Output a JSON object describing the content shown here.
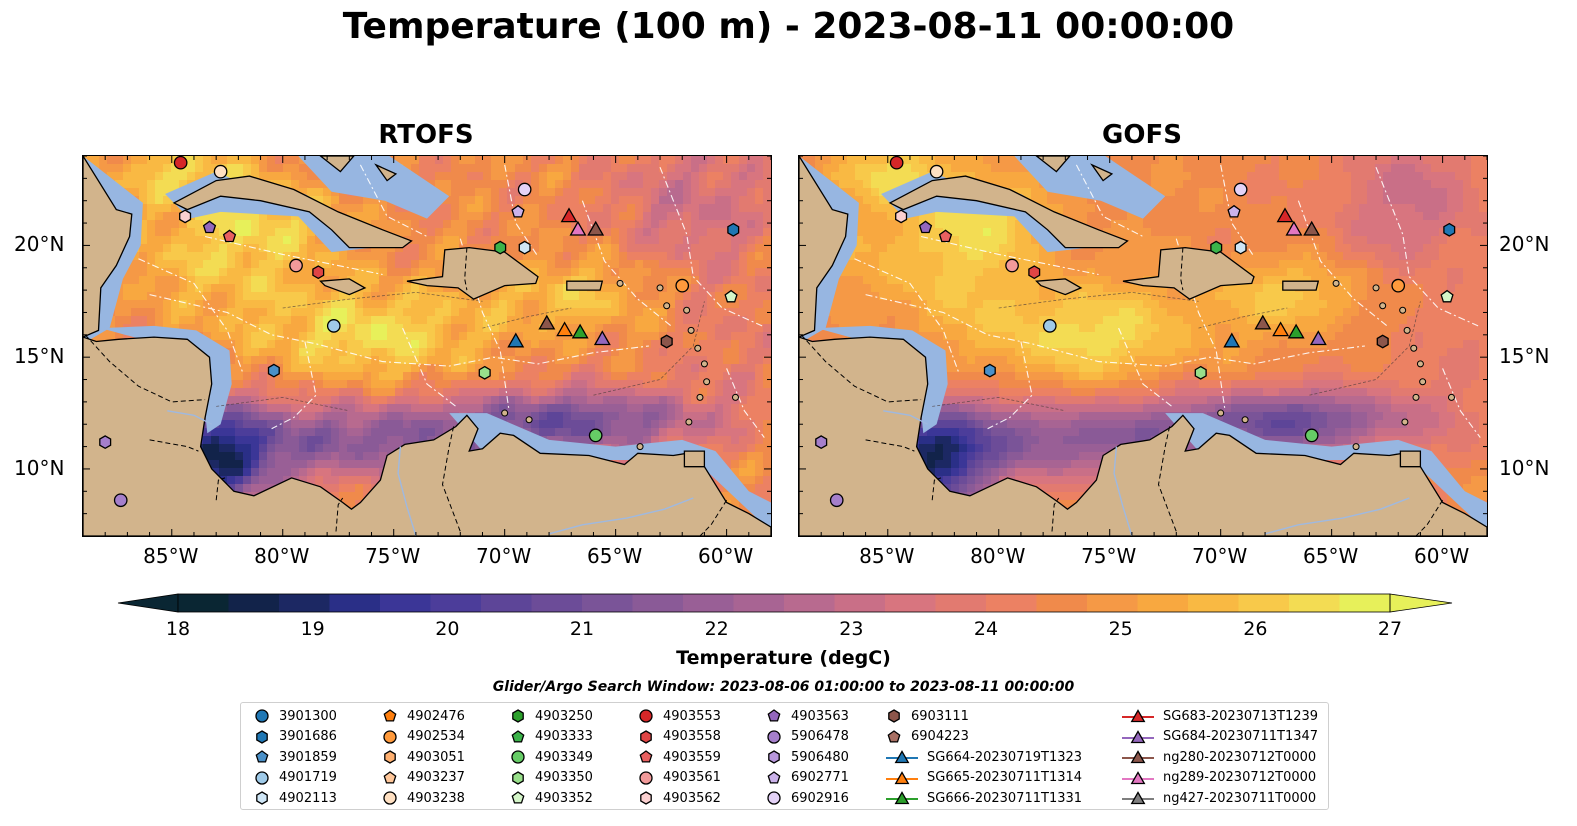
{
  "title": "Temperature (100 m) - 2023-08-11 00:00:00",
  "panels": [
    {
      "title": "RTOFS",
      "model": "rtofs"
    },
    {
      "title": "GOFS",
      "model": "gofs"
    }
  ],
  "axes": {
    "x_ticks": [
      "85°W",
      "80°W",
      "75°W",
      "70°W",
      "65°W",
      "60°W"
    ],
    "x_values": [
      -85,
      -80,
      -75,
      -70,
      -65,
      -60
    ],
    "y_ticks": [
      "20°N",
      "15°N",
      "10°N"
    ],
    "y_values": [
      20,
      15,
      10
    ],
    "lon_range": [
      -89,
      -58
    ],
    "lat_range": [
      7,
      24
    ]
  },
  "colorbar": {
    "label": "Temperature (degC)",
    "ticks": [
      "18",
      "19",
      "20",
      "21",
      "22",
      "23",
      "24",
      "25",
      "26",
      "27"
    ],
    "range": [
      18,
      27
    ],
    "extend": "both",
    "colormap": "thermal",
    "colors": [
      "#0a2633",
      "#12234a",
      "#1c2863",
      "#2a2f87",
      "#3b3697",
      "#4c3d9a",
      "#5d4598",
      "#6c4c98",
      "#7a5498",
      "#8a5a97",
      "#995f96",
      "#a86493",
      "#b86a8f",
      "#c96f87",
      "#d8757f",
      "#e27a70",
      "#ec8163",
      "#f08a4b",
      "#f59946",
      "#f8a840",
      "#f9b943",
      "#f8c94a",
      "#f3dc53",
      "#e7f05a"
    ]
  },
  "search_window": "Glider/Argo Search Window: 2023-08-06 01:00:00 to 2023-08-11 00:00:00",
  "legend": [
    {
      "label": "3901300",
      "marker": "circle",
      "color": "#1f77b4"
    },
    {
      "label": "3901686",
      "marker": "hexagon",
      "color": "#1f77b4"
    },
    {
      "label": "3901859",
      "marker": "pentagon",
      "color": "#4a90c8"
    },
    {
      "label": "4901719",
      "marker": "circle",
      "color": "#9fcae8"
    },
    {
      "label": "4902113",
      "marker": "hexagon",
      "color": "#cfe6f6"
    },
    {
      "label": "4902476",
      "marker": "pentagon",
      "color": "#ff7f0e"
    },
    {
      "label": "4902534",
      "marker": "circle",
      "color": "#ff9a3c"
    },
    {
      "label": "4903051",
      "marker": "hexagon",
      "color": "#ffb070"
    },
    {
      "label": "4903237",
      "marker": "pentagon",
      "color": "#ffc79a"
    },
    {
      "label": "4903238",
      "marker": "circle",
      "color": "#ffe0c2"
    },
    {
      "label": "4903250",
      "marker": "hexagon",
      "color": "#2ca02c"
    },
    {
      "label": "4903333",
      "marker": "pentagon",
      "color": "#3cb34a"
    },
    {
      "label": "4903349",
      "marker": "circle",
      "color": "#66cc66"
    },
    {
      "label": "4903350",
      "marker": "hexagon",
      "color": "#98df8a"
    },
    {
      "label": "4903352",
      "marker": "pentagon",
      "color": "#d4f5c8"
    },
    {
      "label": "4903553",
      "marker": "circle",
      "color": "#d62728"
    },
    {
      "label": "4903558",
      "marker": "hexagon",
      "color": "#e04545"
    },
    {
      "label": "4903559",
      "marker": "pentagon",
      "color": "#e86060"
    },
    {
      "label": "4903561",
      "marker": "circle",
      "color": "#f29a9a"
    },
    {
      "label": "4903562",
      "marker": "hexagon",
      "color": "#fbd0d0"
    },
    {
      "label": "4903563",
      "marker": "pentagon",
      "color": "#9467bd"
    },
    {
      "label": "5906478",
      "marker": "circle",
      "color": "#a57fcb"
    },
    {
      "label": "5906480",
      "marker": "hexagon",
      "color": "#b897dc"
    },
    {
      "label": "6902771",
      "marker": "pentagon",
      "color": "#cbb2ea"
    },
    {
      "label": "6902916",
      "marker": "circle",
      "color": "#e4d2f7"
    },
    {
      "label": "6903111",
      "marker": "hexagon",
      "color": "#8c564b"
    },
    {
      "label": "6904223",
      "marker": "pentagon",
      "color": "#a97064"
    },
    {
      "label": "SG664-20230719T1323",
      "marker": "triangle-line",
      "color": "#1f77b4"
    },
    {
      "label": "SG665-20230711T1314",
      "marker": "triangle-line",
      "color": "#ff7f0e"
    },
    {
      "label": "SG666-20230711T1331",
      "marker": "triangle-line",
      "color": "#2ca02c"
    },
    {
      "label": "SG683-20230713T1239",
      "marker": "triangle-line",
      "color": "#d62728"
    },
    {
      "label": "SG684-20230711T1347",
      "marker": "triangle-line",
      "color": "#9467bd"
    },
    {
      "label": "ng280-20230712T0000",
      "marker": "triangle-line",
      "color": "#8c564b"
    },
    {
      "label": "ng289-20230712T0000",
      "marker": "triangle-line",
      "color": "#e377c2"
    },
    {
      "label": "ng427-20230711T0000",
      "marker": "triangle-line",
      "color": "#7f7f7f"
    }
  ],
  "map_colors": {
    "land": "#d2b48c",
    "shelf": "#97b6e1",
    "deep_cold": "#0a2633",
    "warm": "#f08a4b",
    "hot": "#e7f05a"
  },
  "observations": [
    {
      "id": "4903553",
      "lon": -84.6,
      "lat": 23.7,
      "marker": "circle",
      "color": "#d62728"
    },
    {
      "id": "4903238",
      "lon": -82.8,
      "lat": 23.3,
      "marker": "circle",
      "color": "#ffe0c2"
    },
    {
      "id": "4903562",
      "lon": -84.4,
      "lat": 21.3,
      "marker": "hexagon",
      "color": "#fbd0d0"
    },
    {
      "id": "4903563",
      "lon": -83.3,
      "lat": 20.8,
      "marker": "pentagon",
      "color": "#9467bd"
    },
    {
      "id": "4903559",
      "lon": -82.4,
      "lat": 20.4,
      "marker": "pentagon",
      "color": "#e86060"
    },
    {
      "id": "4903561",
      "lon": -79.4,
      "lat": 19.1,
      "marker": "circle",
      "color": "#f29a9a"
    },
    {
      "id": "4903558",
      "lon": -78.4,
      "lat": 18.8,
      "marker": "hexagon",
      "color": "#e04545"
    },
    {
      "id": "4901719",
      "lon": -77.7,
      "lat": 16.4,
      "marker": "circle",
      "color": "#9fcae8"
    },
    {
      "id": "3901686",
      "lon": -80.4,
      "lat": 14.4,
      "marker": "hexagon",
      "color": "#4a90c8"
    },
    {
      "id": "6902916",
      "lon": -69.1,
      "lat": 22.5,
      "marker": "circle",
      "color": "#e4d2f7"
    },
    {
      "id": "6902771",
      "lon": -69.4,
      "lat": 21.5,
      "marker": "pentagon",
      "color": "#cbb2ea"
    },
    {
      "id": "4903250",
      "lon": -70.2,
      "lat": 19.9,
      "marker": "hexagon",
      "color": "#3cb34a"
    },
    {
      "id": "4902113",
      "lon": -69.1,
      "lat": 19.9,
      "marker": "hexagon",
      "color": "#cfe6f6"
    },
    {
      "id": "3901300",
      "lon": -59.7,
      "lat": 20.7,
      "marker": "hexagon",
      "color": "#1f77b4"
    },
    {
      "id": "4902534",
      "lon": -62.0,
      "lat": 18.2,
      "marker": "circle",
      "color": "#ff9a3c"
    },
    {
      "id": "4903352",
      "lon": -59.8,
      "lat": 17.7,
      "marker": "pentagon",
      "color": "#d4f5c8"
    },
    {
      "id": "6903111",
      "lon": -62.7,
      "lat": 15.7,
      "marker": "hexagon",
      "color": "#8c564b"
    },
    {
      "id": "4903350",
      "lon": -70.9,
      "lat": 14.3,
      "marker": "hexagon",
      "color": "#98df8a"
    },
    {
      "id": "4903349",
      "lon": -65.9,
      "lat": 11.5,
      "marker": "circle",
      "color": "#66cc66"
    },
    {
      "id": "5906478",
      "lon": -88.0,
      "lat": 11.2,
      "marker": "hexagon",
      "color": "#a57fcb"
    },
    {
      "id": "5906480",
      "lon": -87.3,
      "lat": 8.6,
      "marker": "circle",
      "color": "#a57fcb"
    },
    {
      "id": "SG683-20230713T1239",
      "lon": -67.1,
      "lat": 21.3,
      "marker": "triangle",
      "color": "#d62728"
    },
    {
      "id": "ng289-20230712T0000",
      "lon": -66.7,
      "lat": 20.7,
      "marker": "triangle",
      "color": "#e377c2"
    },
    {
      "id": "ng280-20230712T0000",
      "lon": -65.9,
      "lat": 20.7,
      "marker": "triangle",
      "color": "#8c564b"
    },
    {
      "id": "SG664-20230719T1323",
      "lon": -69.5,
      "lat": 15.7,
      "marker": "triangle",
      "color": "#1f77b4"
    },
    {
      "id": "ng427-20230711T0000",
      "lon": -68.1,
      "lat": 16.5,
      "marker": "triangle",
      "color": "#8c564b"
    },
    {
      "id": "SG665-20230711T1314",
      "lon": -67.3,
      "lat": 16.2,
      "marker": "triangle",
      "color": "#ff7f0e"
    },
    {
      "id": "SG666-20230711T1331",
      "lon": -66.6,
      "lat": 16.1,
      "marker": "triangle",
      "color": "#2ca02c"
    },
    {
      "id": "SG684-20230711T1347",
      "lon": -65.6,
      "lat": 15.8,
      "marker": "triangle",
      "color": "#9467bd"
    }
  ]
}
